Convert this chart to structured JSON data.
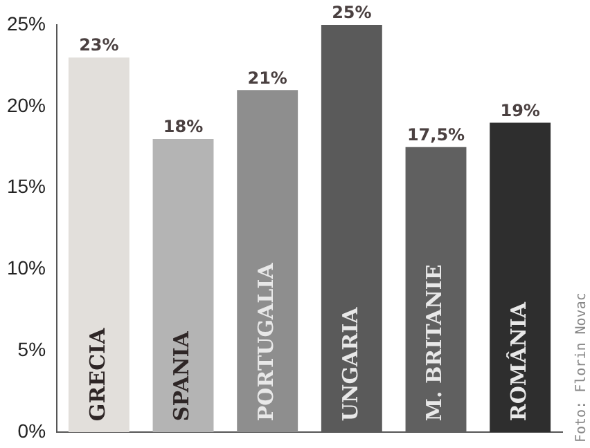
{
  "chart_data": {
    "type": "bar",
    "categories": [
      "GRECIA",
      "SPANIA",
      "PORTUGALIA",
      "UNGARIA",
      "M. BRITANIE",
      "ROMÂNIA"
    ],
    "values": [
      23,
      18,
      21,
      25,
      17.5,
      19
    ],
    "value_labels": [
      "23%",
      "18%",
      "21%",
      "25%",
      "17,5%",
      "19%"
    ],
    "colors": [
      "#e2dfdb",
      "#b4b4b4",
      "#8e8e8e",
      "#5a5a5a",
      "#606060",
      "#2e2e2e"
    ],
    "ylim": [
      0,
      25
    ],
    "yticks": [
      {
        "value": 0,
        "label": "0%"
      },
      {
        "value": 5,
        "label": "5%"
      },
      {
        "value": 10,
        "label": "10%"
      },
      {
        "value": 15,
        "label": "15%"
      },
      {
        "value": 20,
        "label": "20%"
      },
      {
        "value": 25,
        "label": "25%"
      }
    ],
    "grid": false,
    "annotations": [
      "Foto: Florin Novac"
    ]
  }
}
